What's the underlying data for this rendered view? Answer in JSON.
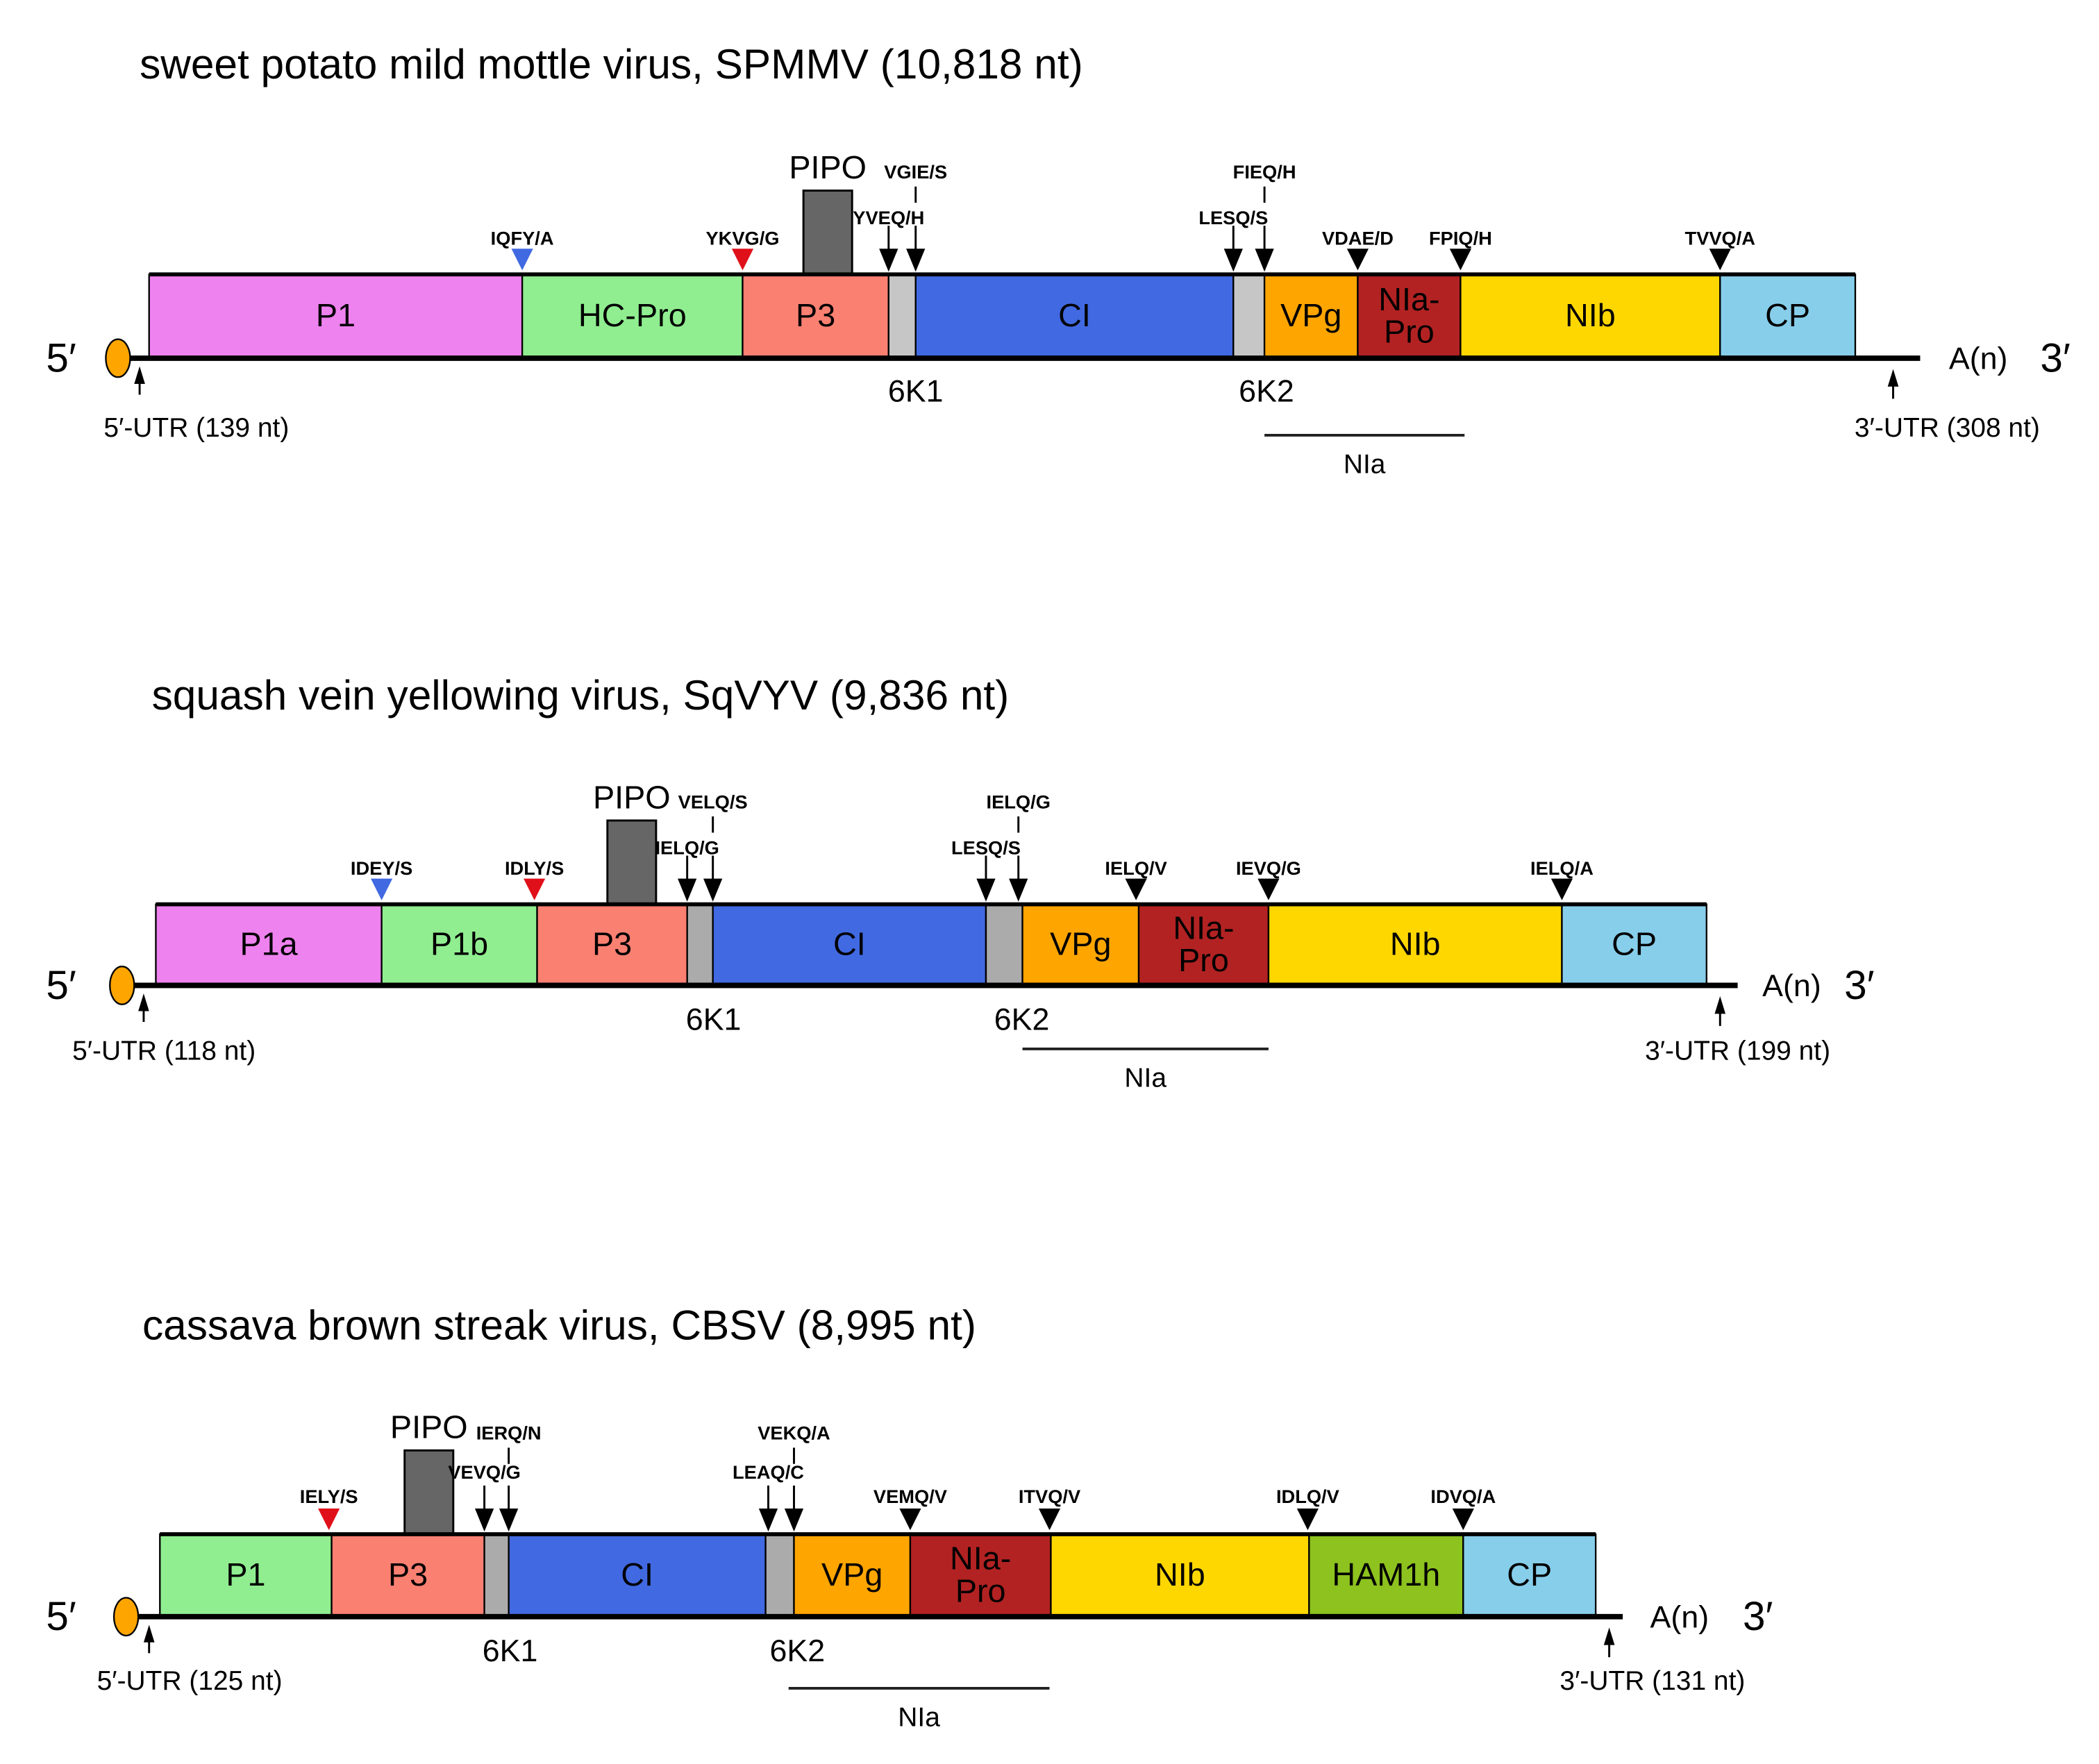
{
  "diagrams": [
    {
      "title": "sweet potato mild mottle virus, SPMMV (10,818 nt)",
      "segments": [
        {
          "label": [
            "P1"
          ],
          "color": "#EE82EE"
        },
        {
          "label": [
            "HC-Pro"
          ],
          "color": "#90EE90"
        },
        {
          "label": [
            "P3"
          ],
          "color": "#FA8072"
        },
        {
          "label": [
            "6K1"
          ],
          "color": "#C6C6C6",
          "below": true
        },
        {
          "label": [
            "CI"
          ],
          "color": "#4169E1"
        },
        {
          "label": [
            "6K2"
          ],
          "color": "#C6C6C6",
          "below": true
        },
        {
          "label": [
            "VPg"
          ],
          "color": "#FFA500"
        },
        {
          "label": [
            "NIa-",
            "Pro"
          ],
          "color": "#B22222"
        },
        {
          "label": [
            "NIb"
          ],
          "color": "#FFD700"
        },
        {
          "label": [
            "CP"
          ],
          "color": "#87CEEB"
        }
      ],
      "pipo_label": "PIPO",
      "sites": [
        {
          "label": "IQFY/A",
          "marker": "triangle",
          "color": "#4169E1"
        },
        {
          "label": "YKVG/G",
          "marker": "triangle",
          "color": "#E0101A"
        },
        {
          "label": "YVEQ/H",
          "marker": "arrow",
          "color": "#000000"
        },
        {
          "label": "VGIE/S",
          "marker": "arrow",
          "color": "#000000"
        },
        {
          "label": "LESQ/S",
          "marker": "arrow",
          "color": "#000000"
        },
        {
          "label": "FIEQ/H",
          "marker": "arrow",
          "color": "#000000"
        },
        {
          "label": "VDAE/D",
          "marker": "triangle",
          "color": "#000000"
        },
        {
          "label": "FPIQ/H",
          "marker": "triangle",
          "color": "#000000"
        },
        {
          "label": "TVVQ/A",
          "marker": "triangle",
          "color": "#000000"
        }
      ],
      "five_prime": "5′",
      "three_prime": "3′",
      "poly_a": "A(n)",
      "utr5": "5′-UTR (139 nt)",
      "utr3": "3′-UTR (308 nt)",
      "nia_label": "NIa"
    },
    {
      "title": "squash vein yellowing virus, SqVYV (9,836 nt)",
      "segments": [
        {
          "label": [
            "P1a"
          ],
          "color": "#EE82EE"
        },
        {
          "label": [
            "P1b"
          ],
          "color": "#90EE90"
        },
        {
          "label": [
            "P3"
          ],
          "color": "#FA8072"
        },
        {
          "label": [
            "6K1"
          ],
          "color": "#ABABAB",
          "below": true
        },
        {
          "label": [
            "CI"
          ],
          "color": "#4169E1"
        },
        {
          "label": [
            "6K2"
          ],
          "color": "#ABABAB",
          "below": true
        },
        {
          "label": [
            "VPg"
          ],
          "color": "#FFA500"
        },
        {
          "label": [
            "NIa-",
            "Pro"
          ],
          "color": "#B22222"
        },
        {
          "label": [
            "NIb"
          ],
          "color": "#FFD700"
        },
        {
          "label": [
            "CP"
          ],
          "color": "#87CEEB"
        }
      ],
      "pipo_label": "PIPO",
      "sites": [
        {
          "label": "IDEY/S",
          "marker": "triangle",
          "color": "#4169E1"
        },
        {
          "label": "IDLY/S",
          "marker": "triangle",
          "color": "#E0101A"
        },
        {
          "label": "IELQ/G",
          "marker": "arrow",
          "color": "#000000"
        },
        {
          "label": "VELQ/S",
          "marker": "arrow",
          "color": "#000000"
        },
        {
          "label": "LESQ/S",
          "marker": "arrow",
          "color": "#000000"
        },
        {
          "label": "IELQ/G",
          "marker": "arrow",
          "color": "#000000"
        },
        {
          "label": "IELQ/V",
          "marker": "triangle",
          "color": "#000000"
        },
        {
          "label": "IEVQ/G",
          "marker": "triangle",
          "color": "#000000"
        },
        {
          "label": "IELQ/A",
          "marker": "triangle",
          "color": "#000000"
        }
      ],
      "five_prime": "5′",
      "three_prime": "3′",
      "poly_a": "A(n)",
      "utr5": "5′-UTR (118 nt)",
      "utr3": "3′-UTR (199 nt)",
      "nia_label": "NIa"
    },
    {
      "title": "cassava brown streak virus, CBSV (8,995 nt)",
      "segments": [
        {
          "label": [
            "P1"
          ],
          "color": "#90EE90"
        },
        {
          "label": [
            "P3"
          ],
          "color": "#FA8072"
        },
        {
          "label": [
            "6K1"
          ],
          "color": "#ABABAB",
          "below": true
        },
        {
          "label": [
            "CI"
          ],
          "color": "#4169E1"
        },
        {
          "label": [
            "6K2"
          ],
          "color": "#ABABAB",
          "below": true
        },
        {
          "label": [
            "VPg"
          ],
          "color": "#FFA500"
        },
        {
          "label": [
            "NIa-",
            "Pro"
          ],
          "color": "#B22222"
        },
        {
          "label": [
            "NIb"
          ],
          "color": "#FFD700"
        },
        {
          "label": [
            "HAM1h"
          ],
          "color": "#8DC21F"
        },
        {
          "label": [
            "CP"
          ],
          "color": "#87CEEB"
        }
      ],
      "pipo_label": "PIPO",
      "sites": [
        {
          "label": "IELY/S",
          "marker": "triangle",
          "color": "#E0101A"
        },
        {
          "label": "VEVQ/G",
          "marker": "arrow",
          "color": "#000000"
        },
        {
          "label": "IERQ/N",
          "marker": "arrow",
          "color": "#000000"
        },
        {
          "label": "LEAQ/C",
          "marker": "arrow",
          "color": "#000000"
        },
        {
          "label": "VEKQ/A",
          "marker": "arrow",
          "color": "#000000"
        },
        {
          "label": "VEMQ/V",
          "marker": "triangle",
          "color": "#000000"
        },
        {
          "label": "ITVQ/V",
          "marker": "triangle",
          "color": "#000000"
        },
        {
          "label": "IDLQ/V",
          "marker": "triangle",
          "color": "#000000"
        },
        {
          "label": "IDVQ/A",
          "marker": "triangle",
          "color": "#000000"
        }
      ],
      "five_prime": "5′",
      "three_prime": "3′",
      "poly_a": "A(n)",
      "utr5": "5′-UTR (125 nt)",
      "utr3": "3′-UTR (131 nt)",
      "nia_label": "NIa"
    }
  ],
  "colors": {
    "pipo": "#666666",
    "cap": "#FFA500",
    "line": "#000000"
  }
}
